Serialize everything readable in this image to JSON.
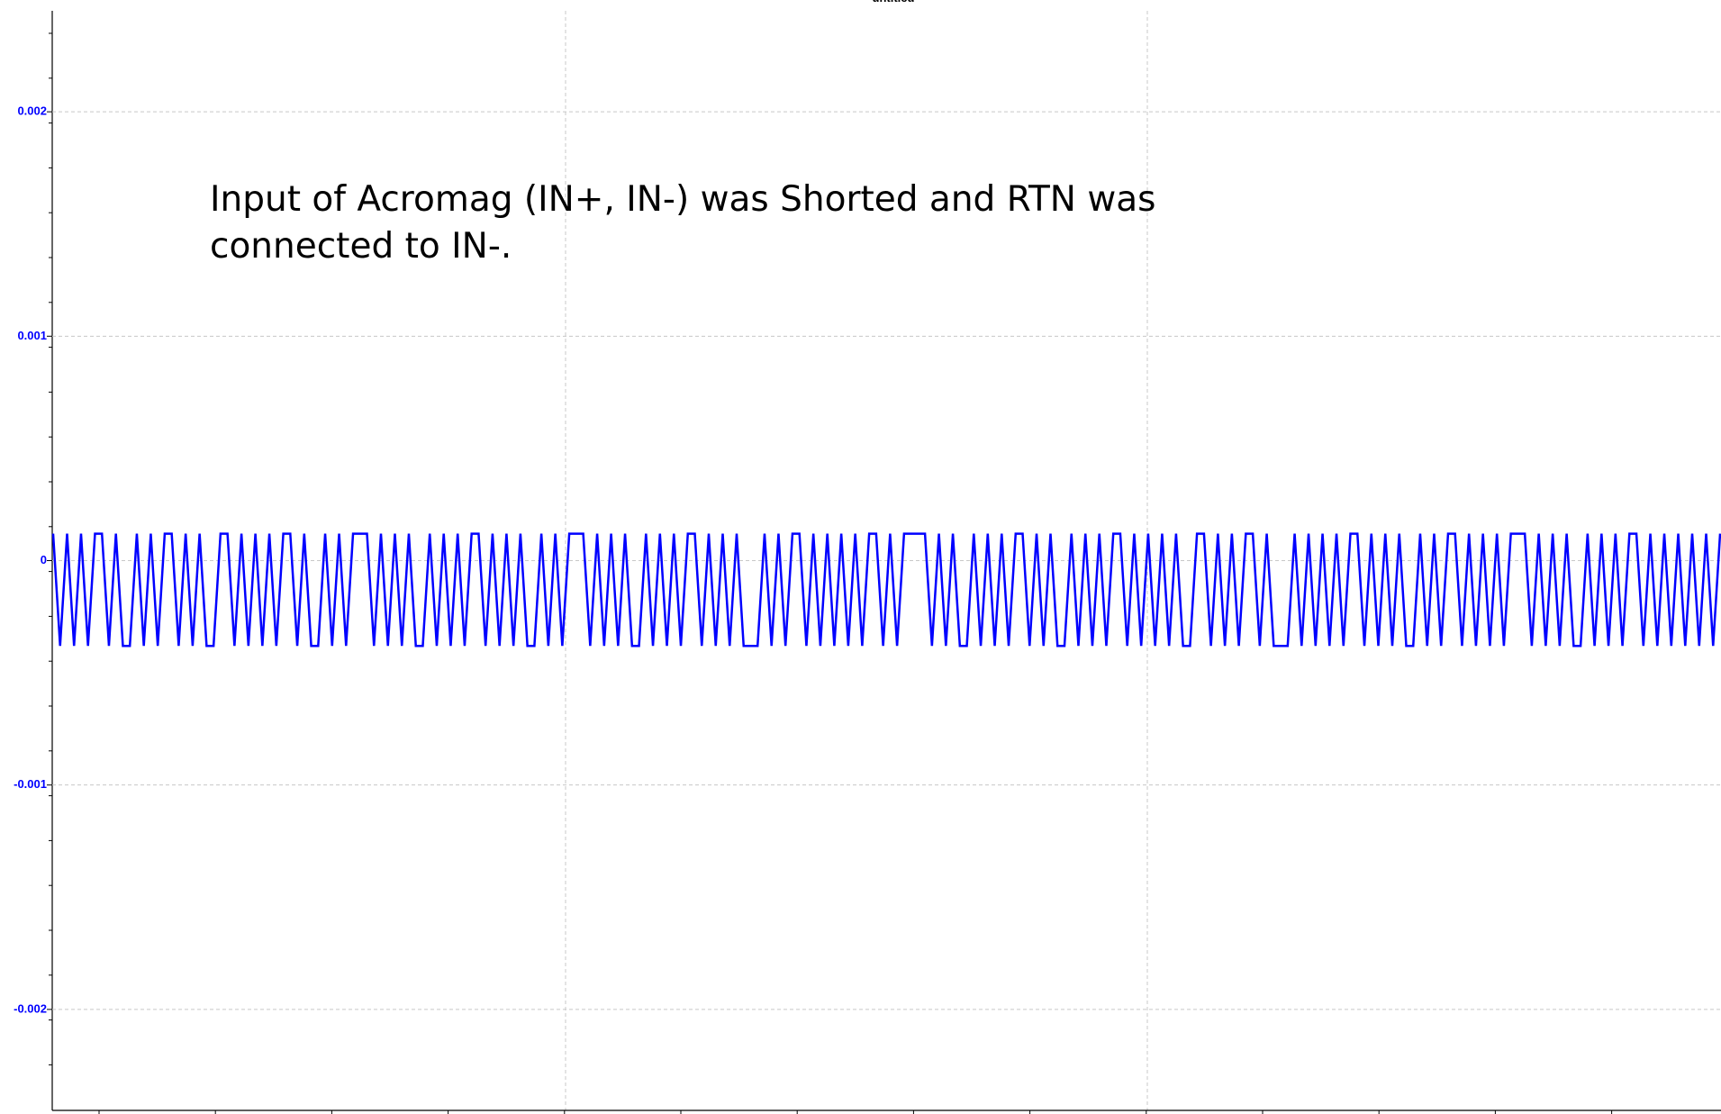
{
  "chart_data": {
    "type": "line",
    "title": "untitled",
    "annotations": [
      "Input of Acromag  (IN+, IN-) was Shorted and RTN was",
      "connected to IN-."
    ],
    "color": "#0000ff",
    "grid": true,
    "ylim": [
      -0.00245,
      0.00245
    ],
    "yticks": [
      0.002,
      0.001,
      0,
      -0.001,
      -0.002
    ],
    "values": [
      0.00012,
      -0.00038,
      0.00012,
      -0.00038,
      0.00012,
      -0.00038,
      0.00012,
      0.00012,
      -0.00038,
      0.00012,
      -0.00038,
      -0.00038,
      0.00012,
      -0.00038,
      0.00012,
      -0.00038,
      0.00012,
      0.00012,
      -0.00038,
      0.00012,
      -0.00038,
      0.00012,
      -0.00038,
      -0.00038,
      0.00012,
      0.00012,
      -0.00038,
      0.00012,
      -0.00038,
      0.00012,
      -0.00038,
      0.00012,
      -0.00038,
      0.00012,
      0.00012,
      -0.00038,
      0.00012,
      -0.00038,
      -0.00038,
      0.00012,
      -0.00038,
      0.00012,
      -0.00038,
      0.00012,
      0.00012,
      0.00012,
      -0.00038,
      0.00012,
      -0.00038,
      0.00012,
      -0.00038,
      0.00012,
      -0.00038,
      -0.00038,
      0.00012,
      -0.00038,
      0.00012,
      -0.00038,
      0.00012,
      -0.00038,
      0.00012,
      0.00012,
      -0.00038,
      0.00012,
      -0.00038,
      0.00012,
      -0.00038,
      0.00012,
      -0.00038,
      -0.00038,
      0.00012,
      -0.00038,
      0.00012,
      -0.00038,
      0.00012,
      0.00012,
      0.00012,
      -0.00038,
      0.00012,
      -0.00038,
      0.00012,
      -0.00038,
      0.00012,
      -0.00038,
      -0.00038,
      0.00012,
      -0.00038,
      0.00012,
      -0.00038,
      0.00012,
      -0.00038,
      0.00012,
      0.00012,
      -0.00038,
      0.00012,
      -0.00038,
      0.00012,
      -0.00038,
      0.00012,
      -0.00038,
      -0.00038,
      -0.00038,
      0.00012,
      -0.00038,
      0.00012,
      -0.00038,
      0.00012,
      0.00012,
      -0.00038,
      0.00012,
      -0.00038,
      0.00012,
      -0.00038,
      0.00012,
      -0.00038,
      0.00012,
      -0.00038,
      0.00012,
      0.00012,
      -0.00038,
      0.00012,
      -0.00038,
      0.00012,
      0.00012,
      0.00012,
      0.00012,
      -0.00038,
      0.00012,
      -0.00038,
      0.00012,
      -0.00038,
      -0.00038,
      0.00012,
      -0.00038,
      0.00012,
      -0.00038,
      0.00012,
      -0.00038,
      0.00012,
      0.00012,
      -0.00038,
      0.00012,
      -0.00038,
      0.00012,
      -0.00038,
      -0.00038,
      0.00012,
      -0.00038,
      0.00012,
      -0.00038,
      0.00012,
      -0.00038,
      0.00012,
      0.00012,
      -0.00038,
      0.00012,
      -0.00038,
      0.00012,
      -0.00038,
      0.00012,
      -0.00038,
      0.00012,
      -0.00038,
      -0.00038,
      0.00012,
      0.00012,
      -0.00038,
      0.00012,
      -0.00038,
      0.00012,
      -0.00038,
      0.00012,
      0.00012,
      -0.00038,
      0.00012,
      -0.00038,
      -0.00038,
      -0.00038,
      0.00012,
      -0.00038,
      0.00012,
      -0.00038,
      0.00012,
      -0.00038,
      0.00012,
      -0.00038,
      0.00012,
      0.00012,
      -0.00038,
      0.00012,
      -0.00038,
      0.00012,
      -0.00038,
      0.00012,
      -0.00038,
      -0.00038,
      0.00012,
      -0.00038,
      0.00012,
      -0.00038,
      0.00012,
      0.00012,
      -0.00038,
      0.00012,
      -0.00038,
      0.00012,
      -0.00038,
      0.00012,
      -0.00038,
      0.00012,
      0.00012,
      0.00012,
      -0.00038,
      0.00012,
      -0.00038,
      0.00012,
      -0.00038,
      0.00012,
      -0.00038,
      -0.00038,
      0.00012,
      -0.00038,
      0.00012,
      -0.00038,
      0.00012,
      -0.00038,
      0.00012,
      0.00012,
      -0.00038,
      0.00012,
      -0.00038,
      0.00012,
      -0.00038,
      0.00012,
      -0.00038,
      0.00012,
      -0.00038,
      0.00012,
      -0.00038,
      0.00012
    ]
  }
}
